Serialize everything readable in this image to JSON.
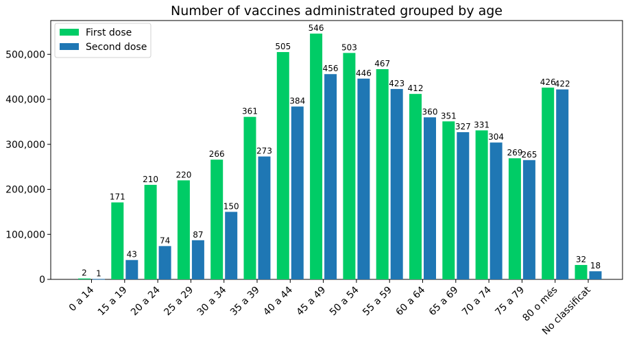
{
  "chart_data": {
    "type": "bar",
    "title": "Number of vaccines administrated grouped by age",
    "categories": [
      "0 a 14",
      "15 a 19",
      "20 a 24",
      "25 a 29",
      "30 a 34",
      "35 a 39",
      "40 a 44",
      "45 a 49",
      "50 a 54",
      "55 a 59",
      "60 a 64",
      "65 a 69",
      "70 a 74",
      "75 a 79",
      "80 o més",
      "No classificat"
    ],
    "series": [
      {
        "name": "First dose",
        "color": "#00cc66",
        "values": [
          2000,
          171000,
          210000,
          220000,
          266000,
          361000,
          505000,
          546000,
          503000,
          467000,
          412000,
          351000,
          331000,
          269000,
          426000,
          32000
        ],
        "labels": [
          "2",
          "171",
          "210",
          "220",
          "266",
          "361",
          "505",
          "546",
          "503",
          "467",
          "412",
          "351",
          "331",
          "269",
          "426",
          "32"
        ]
      },
      {
        "name": "Second dose",
        "color": "#1f77b4",
        "values": [
          1000,
          43000,
          74000,
          87000,
          150000,
          273000,
          384000,
          456000,
          446000,
          423000,
          360000,
          327000,
          304000,
          265000,
          422000,
          18000
        ],
        "labels": [
          "1",
          "43",
          "74",
          "87",
          "150",
          "273",
          "384",
          "456",
          "446",
          "423",
          "360",
          "327",
          "304",
          "265",
          "422",
          "18"
        ]
      }
    ],
    "yticks": [
      0,
      100000,
      200000,
      300000,
      400000,
      500000
    ],
    "ytick_labels": [
      "0",
      "100,000",
      "200,000",
      "300,000",
      "400,000",
      "500,000"
    ],
    "ylim": [
      0,
      575000
    ],
    "legend": "top-left",
    "xlabel": "",
    "ylabel": ""
  }
}
